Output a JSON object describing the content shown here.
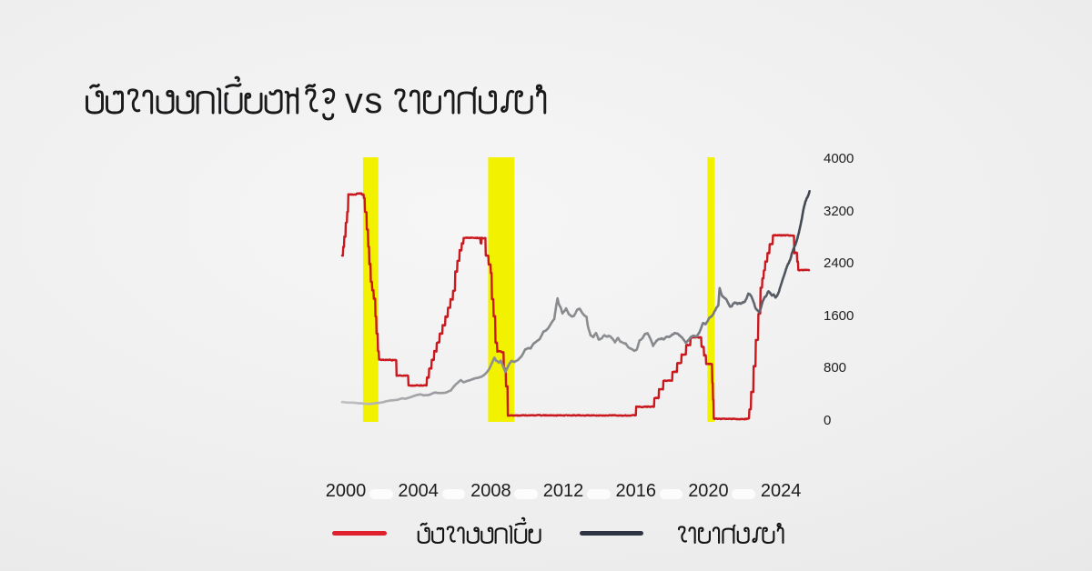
{
  "title": "อัตราดอกเบี้ยสหรัฐ vs ราคาทองคำ",
  "legend": [
    {
      "label": "อัตราดอกเบี้ย",
      "color": "#e0212d"
    },
    {
      "label": "ราคาทองคำ",
      "color": "#2e3442"
    }
  ],
  "chart_data": {
    "type": "line",
    "title": "อัตราดอกเบี้ยสหรัฐ vs ราคาทองคำ",
    "x_ticks": [
      2000,
      2004,
      2008,
      2012,
      2016,
      2020,
      2024
    ],
    "y_ticks_right": [
      0,
      800,
      1600,
      2400,
      3200,
      4000
    ],
    "xlim": [
      1999.55,
      2025.75
    ],
    "gold_ylim": [
      0,
      4000
    ],
    "rate_ylim": [
      0,
      7.52
    ],
    "grid": false,
    "legend_position": "bottom",
    "recession_bands": {
      "color": "#f1f100",
      "spans": [
        [
          2000.95,
          2001.8
        ],
        [
          2007.85,
          2009.3
        ],
        [
          2019.95,
          2020.35
        ]
      ]
    },
    "series": [
      {
        "name": "อัตราดอกเบี้ย",
        "axis": "rate",
        "interpolation": "step",
        "color": "#c9181e",
        "points": [
          [
            1999.8,
            4.75
          ],
          [
            1999.86,
            5.0
          ],
          [
            1999.92,
            5.3
          ],
          [
            2000.0,
            5.7
          ],
          [
            2000.08,
            6.0
          ],
          [
            2000.14,
            6.5
          ],
          [
            2000.55,
            6.5
          ],
          [
            2000.6,
            6.53
          ],
          [
            2000.9,
            6.5
          ],
          [
            2001.0,
            6.4
          ],
          [
            2001.06,
            6.0
          ],
          [
            2001.16,
            5.5
          ],
          [
            2001.24,
            5.0
          ],
          [
            2001.3,
            4.5
          ],
          [
            2001.38,
            4.0
          ],
          [
            2001.46,
            3.75
          ],
          [
            2001.55,
            3.5
          ],
          [
            2001.64,
            3.0
          ],
          [
            2001.7,
            2.5
          ],
          [
            2001.78,
            2.0
          ],
          [
            2001.84,
            1.75
          ],
          [
            2002.74,
            1.75
          ],
          [
            2002.8,
            1.3
          ],
          [
            2003.4,
            1.3
          ],
          [
            2003.46,
            1.02
          ],
          [
            2004.4,
            1.02
          ],
          [
            2004.48,
            1.25
          ],
          [
            2004.6,
            1.5
          ],
          [
            2004.74,
            1.75
          ],
          [
            2004.88,
            2.0
          ],
          [
            2005.02,
            2.25
          ],
          [
            2005.18,
            2.5
          ],
          [
            2005.34,
            2.75
          ],
          [
            2005.5,
            3.0
          ],
          [
            2005.64,
            3.25
          ],
          [
            2005.78,
            3.5
          ],
          [
            2005.92,
            3.75
          ],
          [
            2006.04,
            4.3
          ],
          [
            2006.16,
            4.6
          ],
          [
            2006.28,
            4.9
          ],
          [
            2006.4,
            5.1
          ],
          [
            2006.5,
            5.26
          ],
          [
            2007.38,
            5.26
          ],
          [
            2007.44,
            5.1
          ],
          [
            2007.5,
            5.26
          ],
          [
            2007.56,
            5.25
          ],
          [
            2007.72,
            4.75
          ],
          [
            2007.88,
            4.5
          ],
          [
            2008.0,
            4.25
          ],
          [
            2008.06,
            3.5
          ],
          [
            2008.16,
            3.0
          ],
          [
            2008.26,
            2.25
          ],
          [
            2008.36,
            2.0
          ],
          [
            2008.6,
            1.98
          ],
          [
            2008.72,
            1.5
          ],
          [
            2008.84,
            1.0
          ],
          [
            2008.94,
            0.16
          ],
          [
            2015.96,
            0.16
          ],
          [
            2016.02,
            0.41
          ],
          [
            2016.96,
            0.41
          ],
          [
            2017.02,
            0.66
          ],
          [
            2017.22,
            0.66
          ],
          [
            2017.28,
            0.91
          ],
          [
            2017.46,
            0.91
          ],
          [
            2017.52,
            1.16
          ],
          [
            2017.96,
            1.16
          ],
          [
            2018.02,
            1.41
          ],
          [
            2018.22,
            1.41
          ],
          [
            2018.28,
            1.66
          ],
          [
            2018.46,
            1.66
          ],
          [
            2018.52,
            1.91
          ],
          [
            2018.72,
            1.91
          ],
          [
            2018.78,
            2.18
          ],
          [
            2018.96,
            2.18
          ],
          [
            2019.02,
            2.4
          ],
          [
            2019.56,
            2.4
          ],
          [
            2019.62,
            2.13
          ],
          [
            2019.7,
            2.13
          ],
          [
            2019.76,
            1.88
          ],
          [
            2019.82,
            1.88
          ],
          [
            2019.88,
            1.63
          ],
          [
            2020.16,
            1.63
          ],
          [
            2020.22,
            1.1
          ],
          [
            2020.26,
            0.6
          ],
          [
            2020.3,
            0.06
          ],
          [
            2022.2,
            0.08
          ],
          [
            2022.26,
            0.33
          ],
          [
            2022.36,
            0.83
          ],
          [
            2022.5,
            1.58
          ],
          [
            2022.62,
            2.33
          ],
          [
            2022.76,
            3.08
          ],
          [
            2022.88,
            3.83
          ],
          [
            2022.98,
            4.1
          ],
          [
            2023.06,
            4.33
          ],
          [
            2023.14,
            4.58
          ],
          [
            2023.26,
            4.83
          ],
          [
            2023.38,
            5.08
          ],
          [
            2023.56,
            5.33
          ],
          [
            2024.68,
            5.33
          ],
          [
            2024.74,
            4.83
          ],
          [
            2024.86,
            4.83
          ],
          [
            2024.9,
            4.58
          ],
          [
            2024.96,
            4.33
          ],
          [
            2025.55,
            4.33
          ]
        ]
      },
      {
        "name": "ราคาทองคำ",
        "axis": "gold",
        "interpolation": "linear",
        "color_gradient": [
          "#c1c3c4",
          "#9b9da0",
          "#85888b",
          "#8e9093",
          "#767980",
          "#3e434e"
        ],
        "points": [
          [
            1999.8,
            290
          ],
          [
            2000.1,
            283
          ],
          [
            2000.4,
            278
          ],
          [
            2000.7,
            272
          ],
          [
            2001.0,
            266
          ],
          [
            2001.3,
            260
          ],
          [
            2001.6,
            272
          ],
          [
            2001.9,
            278
          ],
          [
            2002.2,
            300
          ],
          [
            2002.5,
            315
          ],
          [
            2002.8,
            320
          ],
          [
            2003.1,
            345
          ],
          [
            2003.3,
            340
          ],
          [
            2003.6,
            365
          ],
          [
            2003.9,
            395
          ],
          [
            2004.1,
            408
          ],
          [
            2004.3,
            392
          ],
          [
            2004.6,
            400
          ],
          [
            2004.9,
            435
          ],
          [
            2005.2,
            428
          ],
          [
            2005.5,
            432
          ],
          [
            2005.8,
            468
          ],
          [
            2006.0,
            540
          ],
          [
            2006.15,
            580
          ],
          [
            2006.35,
            625
          ],
          [
            2006.5,
            590
          ],
          [
            2006.7,
            612
          ],
          [
            2006.9,
            628
          ],
          [
            2007.1,
            650
          ],
          [
            2007.3,
            662
          ],
          [
            2007.5,
            678
          ],
          [
            2007.7,
            720
          ],
          [
            2007.9,
            790
          ],
          [
            2008.1,
            905
          ],
          [
            2008.2,
            968
          ],
          [
            2008.3,
            920
          ],
          [
            2008.45,
            890
          ],
          [
            2008.55,
            920
          ],
          [
            2008.7,
            820
          ],
          [
            2008.8,
            750
          ],
          [
            2008.9,
            800
          ],
          [
            2009.0,
            865
          ],
          [
            2009.15,
            920
          ],
          [
            2009.3,
            900
          ],
          [
            2009.5,
            935
          ],
          [
            2009.7,
            990
          ],
          [
            2009.9,
            1090
          ],
          [
            2010.05,
            1110
          ],
          [
            2010.2,
            1105
          ],
          [
            2010.35,
            1180
          ],
          [
            2010.5,
            1205
          ],
          [
            2010.7,
            1250
          ],
          [
            2010.9,
            1360
          ],
          [
            2011.05,
            1380
          ],
          [
            2011.2,
            1430
          ],
          [
            2011.35,
            1500
          ],
          [
            2011.5,
            1560
          ],
          [
            2011.6,
            1750
          ],
          [
            2011.68,
            1880
          ],
          [
            2011.75,
            1780
          ],
          [
            2011.85,
            1730
          ],
          [
            2011.95,
            1640
          ],
          [
            2012.05,
            1680
          ],
          [
            2012.15,
            1720
          ],
          [
            2012.3,
            1630
          ],
          [
            2012.45,
            1590
          ],
          [
            2012.6,
            1610
          ],
          [
            2012.75,
            1700
          ],
          [
            2012.9,
            1720
          ],
          [
            2013.0,
            1670
          ],
          [
            2013.15,
            1610
          ],
          [
            2013.28,
            1590
          ],
          [
            2013.35,
            1450
          ],
          [
            2013.5,
            1310
          ],
          [
            2013.65,
            1280
          ],
          [
            2013.8,
            1350
          ],
          [
            2013.95,
            1240
          ],
          [
            2014.1,
            1260
          ],
          [
            2014.25,
            1310
          ],
          [
            2014.4,
            1290
          ],
          [
            2014.55,
            1300
          ],
          [
            2014.7,
            1260
          ],
          [
            2014.85,
            1200
          ],
          [
            2015.0,
            1270
          ],
          [
            2015.15,
            1210
          ],
          [
            2015.3,
            1190
          ],
          [
            2015.45,
            1180
          ],
          [
            2015.6,
            1120
          ],
          [
            2015.75,
            1100
          ],
          [
            2015.9,
            1070
          ],
          [
            2016.05,
            1090
          ],
          [
            2016.2,
            1230
          ],
          [
            2016.35,
            1260
          ],
          [
            2016.5,
            1330
          ],
          [
            2016.65,
            1340
          ],
          [
            2016.8,
            1260
          ],
          [
            2016.95,
            1150
          ],
          [
            2017.1,
            1210
          ],
          [
            2017.25,
            1250
          ],
          [
            2017.4,
            1260
          ],
          [
            2017.55,
            1250
          ],
          [
            2017.7,
            1290
          ],
          [
            2017.85,
            1280
          ],
          [
            2018.0,
            1320
          ],
          [
            2018.15,
            1340
          ],
          [
            2018.3,
            1330
          ],
          [
            2018.45,
            1300
          ],
          [
            2018.6,
            1260
          ],
          [
            2018.75,
            1200
          ],
          [
            2018.9,
            1230
          ],
          [
            2019.05,
            1290
          ],
          [
            2019.2,
            1300
          ],
          [
            2019.35,
            1290
          ],
          [
            2019.5,
            1350
          ],
          [
            2019.6,
            1420
          ],
          [
            2019.7,
            1500
          ],
          [
            2019.85,
            1480
          ],
          [
            2019.95,
            1520
          ],
          [
            2020.05,
            1570
          ],
          [
            2020.15,
            1590
          ],
          [
            2020.25,
            1620
          ],
          [
            2020.35,
            1680
          ],
          [
            2020.45,
            1730
          ],
          [
            2020.55,
            1770
          ],
          [
            2020.62,
            2030
          ],
          [
            2020.7,
            1950
          ],
          [
            2020.8,
            1900
          ],
          [
            2020.9,
            1880
          ],
          [
            2021.0,
            1850
          ],
          [
            2021.1,
            1790
          ],
          [
            2021.2,
            1740
          ],
          [
            2021.3,
            1760
          ],
          [
            2021.4,
            1800
          ],
          [
            2021.5,
            1810
          ],
          [
            2021.6,
            1790
          ],
          [
            2021.7,
            1800
          ],
          [
            2021.8,
            1790
          ],
          [
            2021.9,
            1810
          ],
          [
            2022.0,
            1820
          ],
          [
            2022.1,
            1870
          ],
          [
            2022.2,
            1950
          ],
          [
            2022.3,
            1930
          ],
          [
            2022.4,
            1880
          ],
          [
            2022.5,
            1820
          ],
          [
            2022.6,
            1720
          ],
          [
            2022.7,
            1690
          ],
          [
            2022.8,
            1660
          ],
          [
            2022.9,
            1730
          ],
          [
            2023.0,
            1830
          ],
          [
            2023.1,
            1890
          ],
          [
            2023.2,
            1920
          ],
          [
            2023.3,
            1980
          ],
          [
            2023.4,
            1960
          ],
          [
            2023.5,
            1920
          ],
          [
            2023.6,
            1930
          ],
          [
            2023.7,
            1890
          ],
          [
            2023.8,
            1920
          ],
          [
            2023.9,
            1980
          ],
          [
            2024.0,
            2080
          ],
          [
            2024.1,
            2160
          ],
          [
            2024.2,
            2250
          ],
          [
            2024.3,
            2330
          ],
          [
            2024.4,
            2400
          ],
          [
            2024.5,
            2450
          ],
          [
            2024.6,
            2550
          ],
          [
            2024.7,
            2640
          ],
          [
            2024.8,
            2700
          ],
          [
            2024.9,
            2780
          ],
          [
            2025.0,
            2900
          ],
          [
            2025.1,
            3020
          ],
          [
            2025.2,
            3160
          ],
          [
            2025.3,
            3300
          ],
          [
            2025.4,
            3380
          ],
          [
            2025.5,
            3440
          ],
          [
            2025.58,
            3510
          ]
        ]
      }
    ]
  }
}
